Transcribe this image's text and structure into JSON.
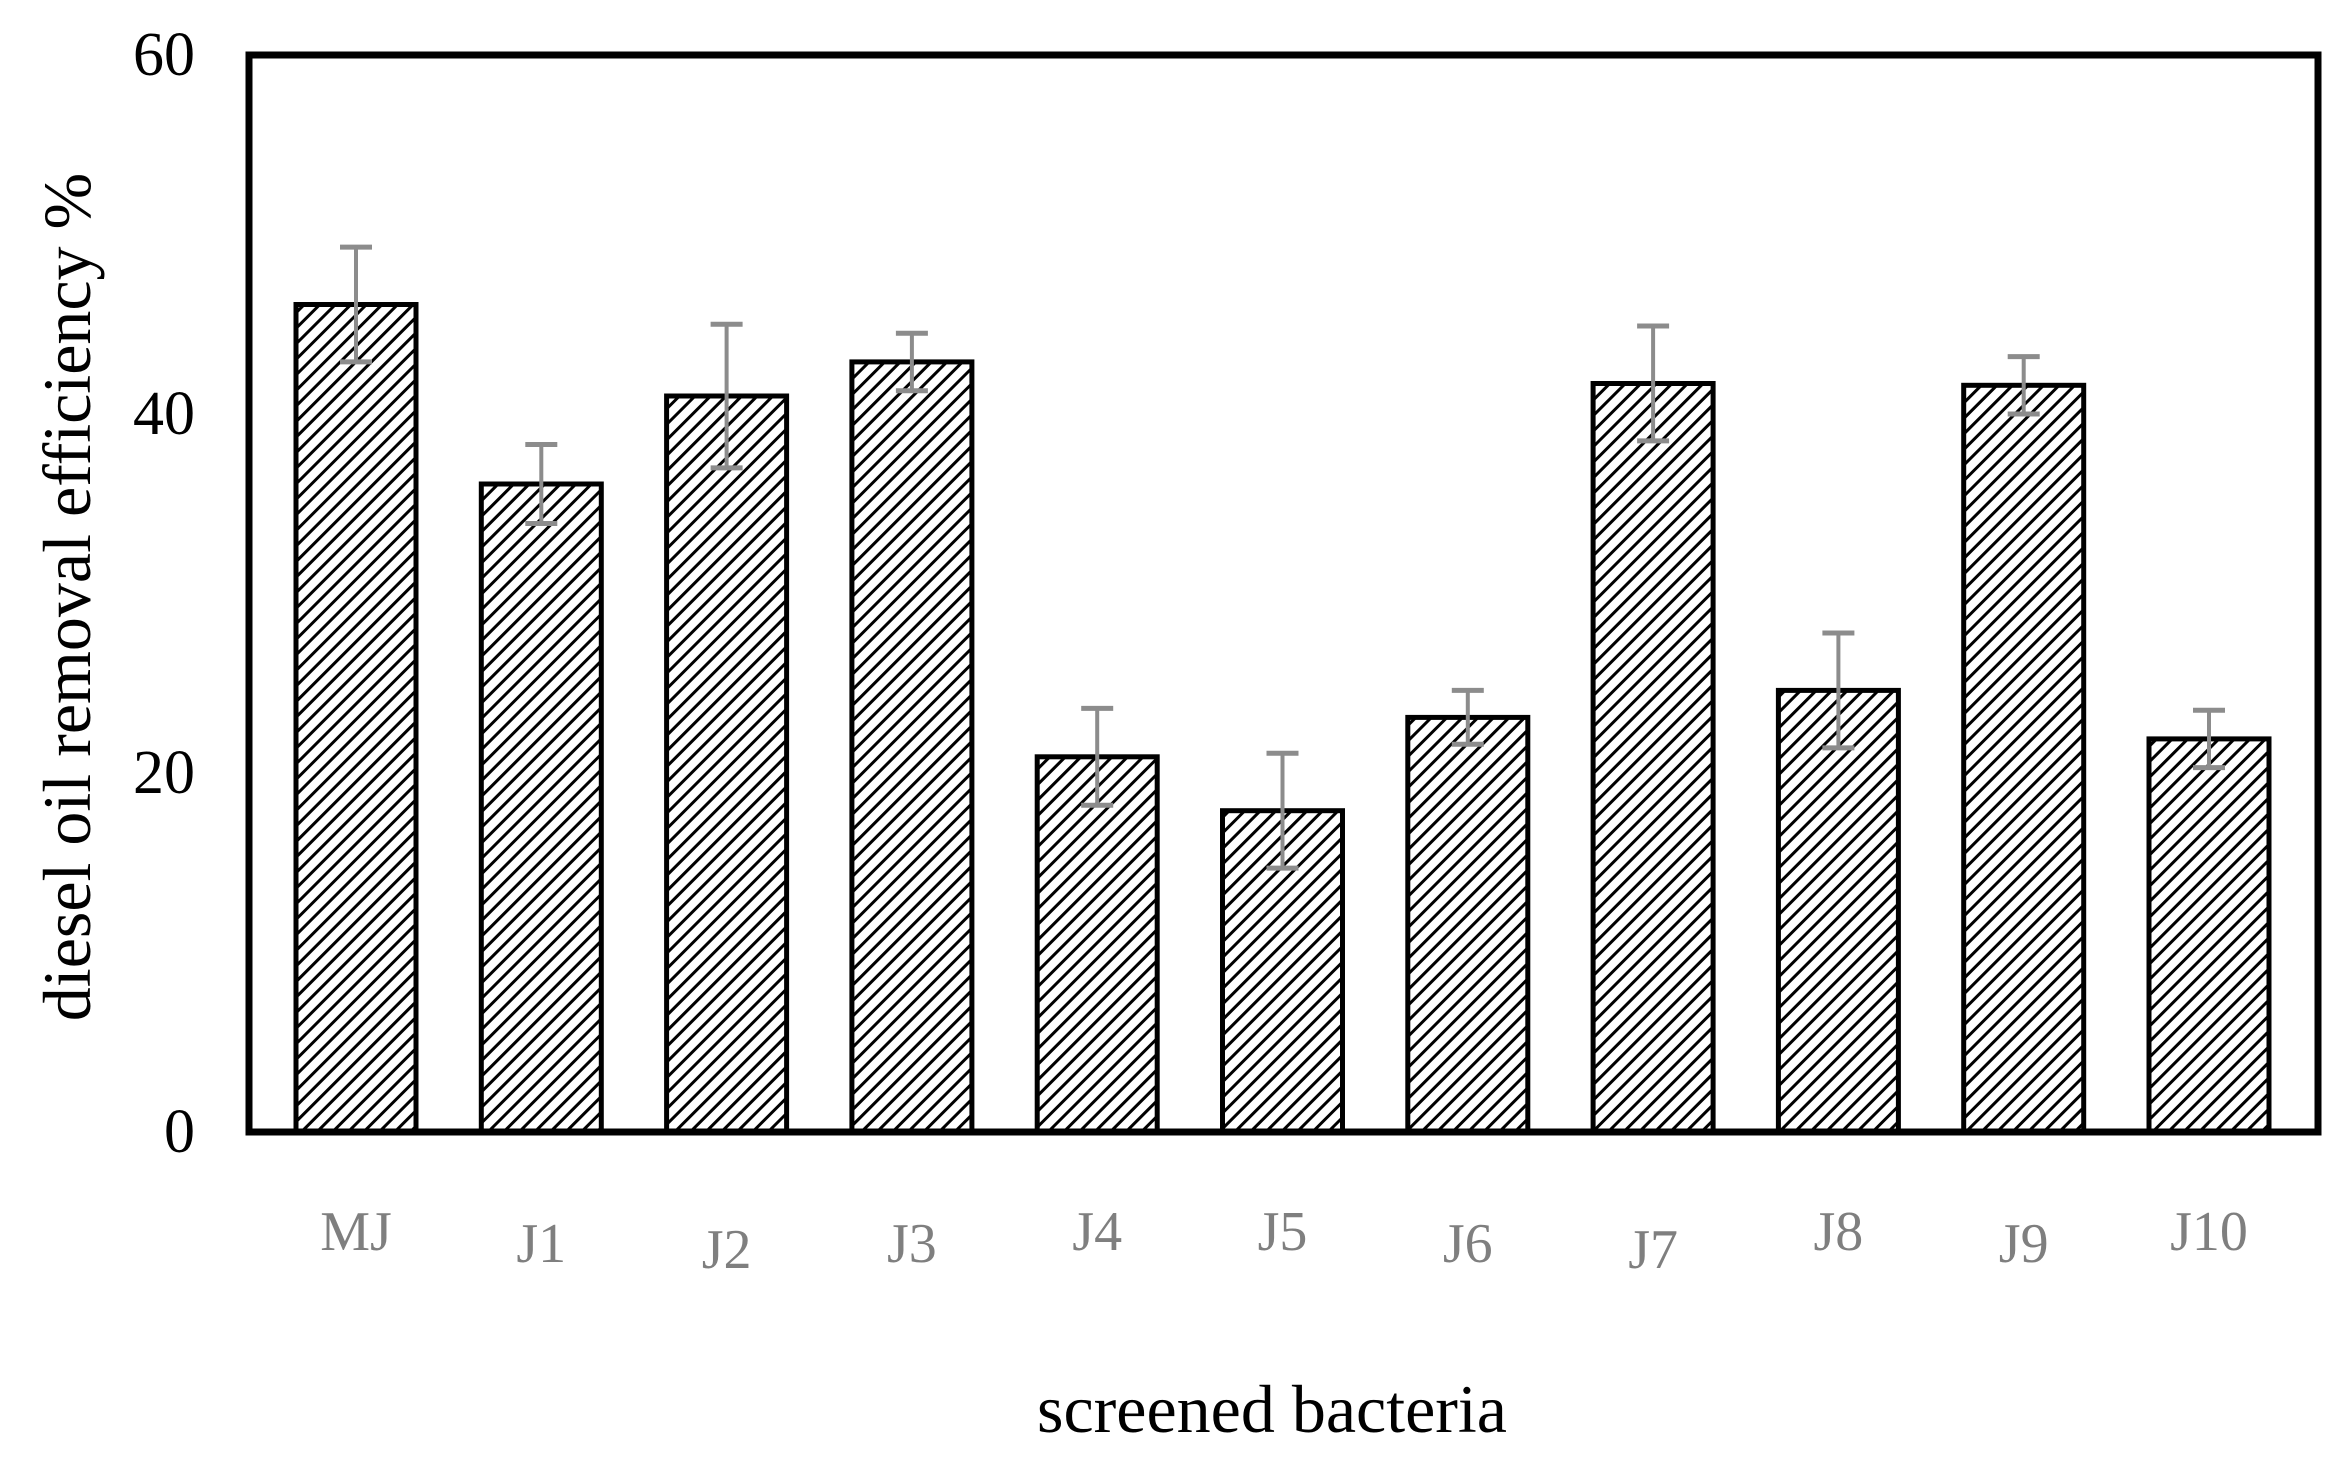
{
  "chart_data": {
    "type": "bar",
    "title": "",
    "xlabel": "screened bacteria",
    "ylabel": "diesel oil removal efficiency %",
    "ylim": [
      0,
      60
    ],
    "yticks": [
      "0",
      "20",
      "40",
      "60"
    ],
    "categories": [
      "MJ",
      "J1",
      "J2",
      "J3",
      "J4",
      "J5",
      "J6",
      "J7",
      "J8",
      "J9",
      "J10"
    ],
    "values": [
      46.1,
      36.1,
      41.0,
      42.9,
      20.9,
      17.9,
      23.1,
      41.7,
      24.6,
      41.6,
      21.9
    ],
    "errors": [
      3.2,
      2.2,
      4.0,
      1.6,
      2.7,
      3.2,
      1.5,
      3.2,
      3.2,
      1.6,
      1.6
    ],
    "grid": false,
    "legend": "none",
    "bar_fill": "hatched diagonal",
    "colors": {
      "bar_edge": "#000000",
      "hatch": "#000000",
      "error_bar": "#8c8c8c",
      "tick_label_x": "#7f7f7f",
      "axis": "#000000"
    }
  }
}
